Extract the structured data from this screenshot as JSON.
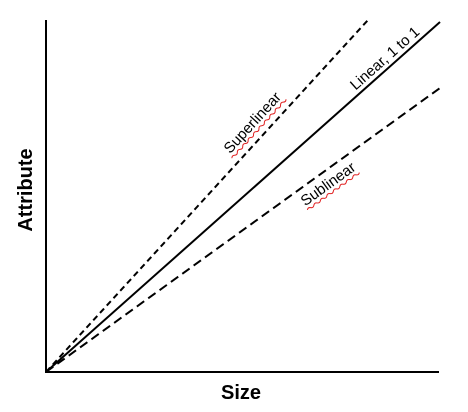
{
  "axes": {
    "x_label": "Size",
    "y_label": "Attribute"
  },
  "lines": [
    {
      "label": "Superlinear"
    },
    {
      "label": "Linear, 1 to 1"
    },
    {
      "label": "Sublinear"
    }
  ]
}
